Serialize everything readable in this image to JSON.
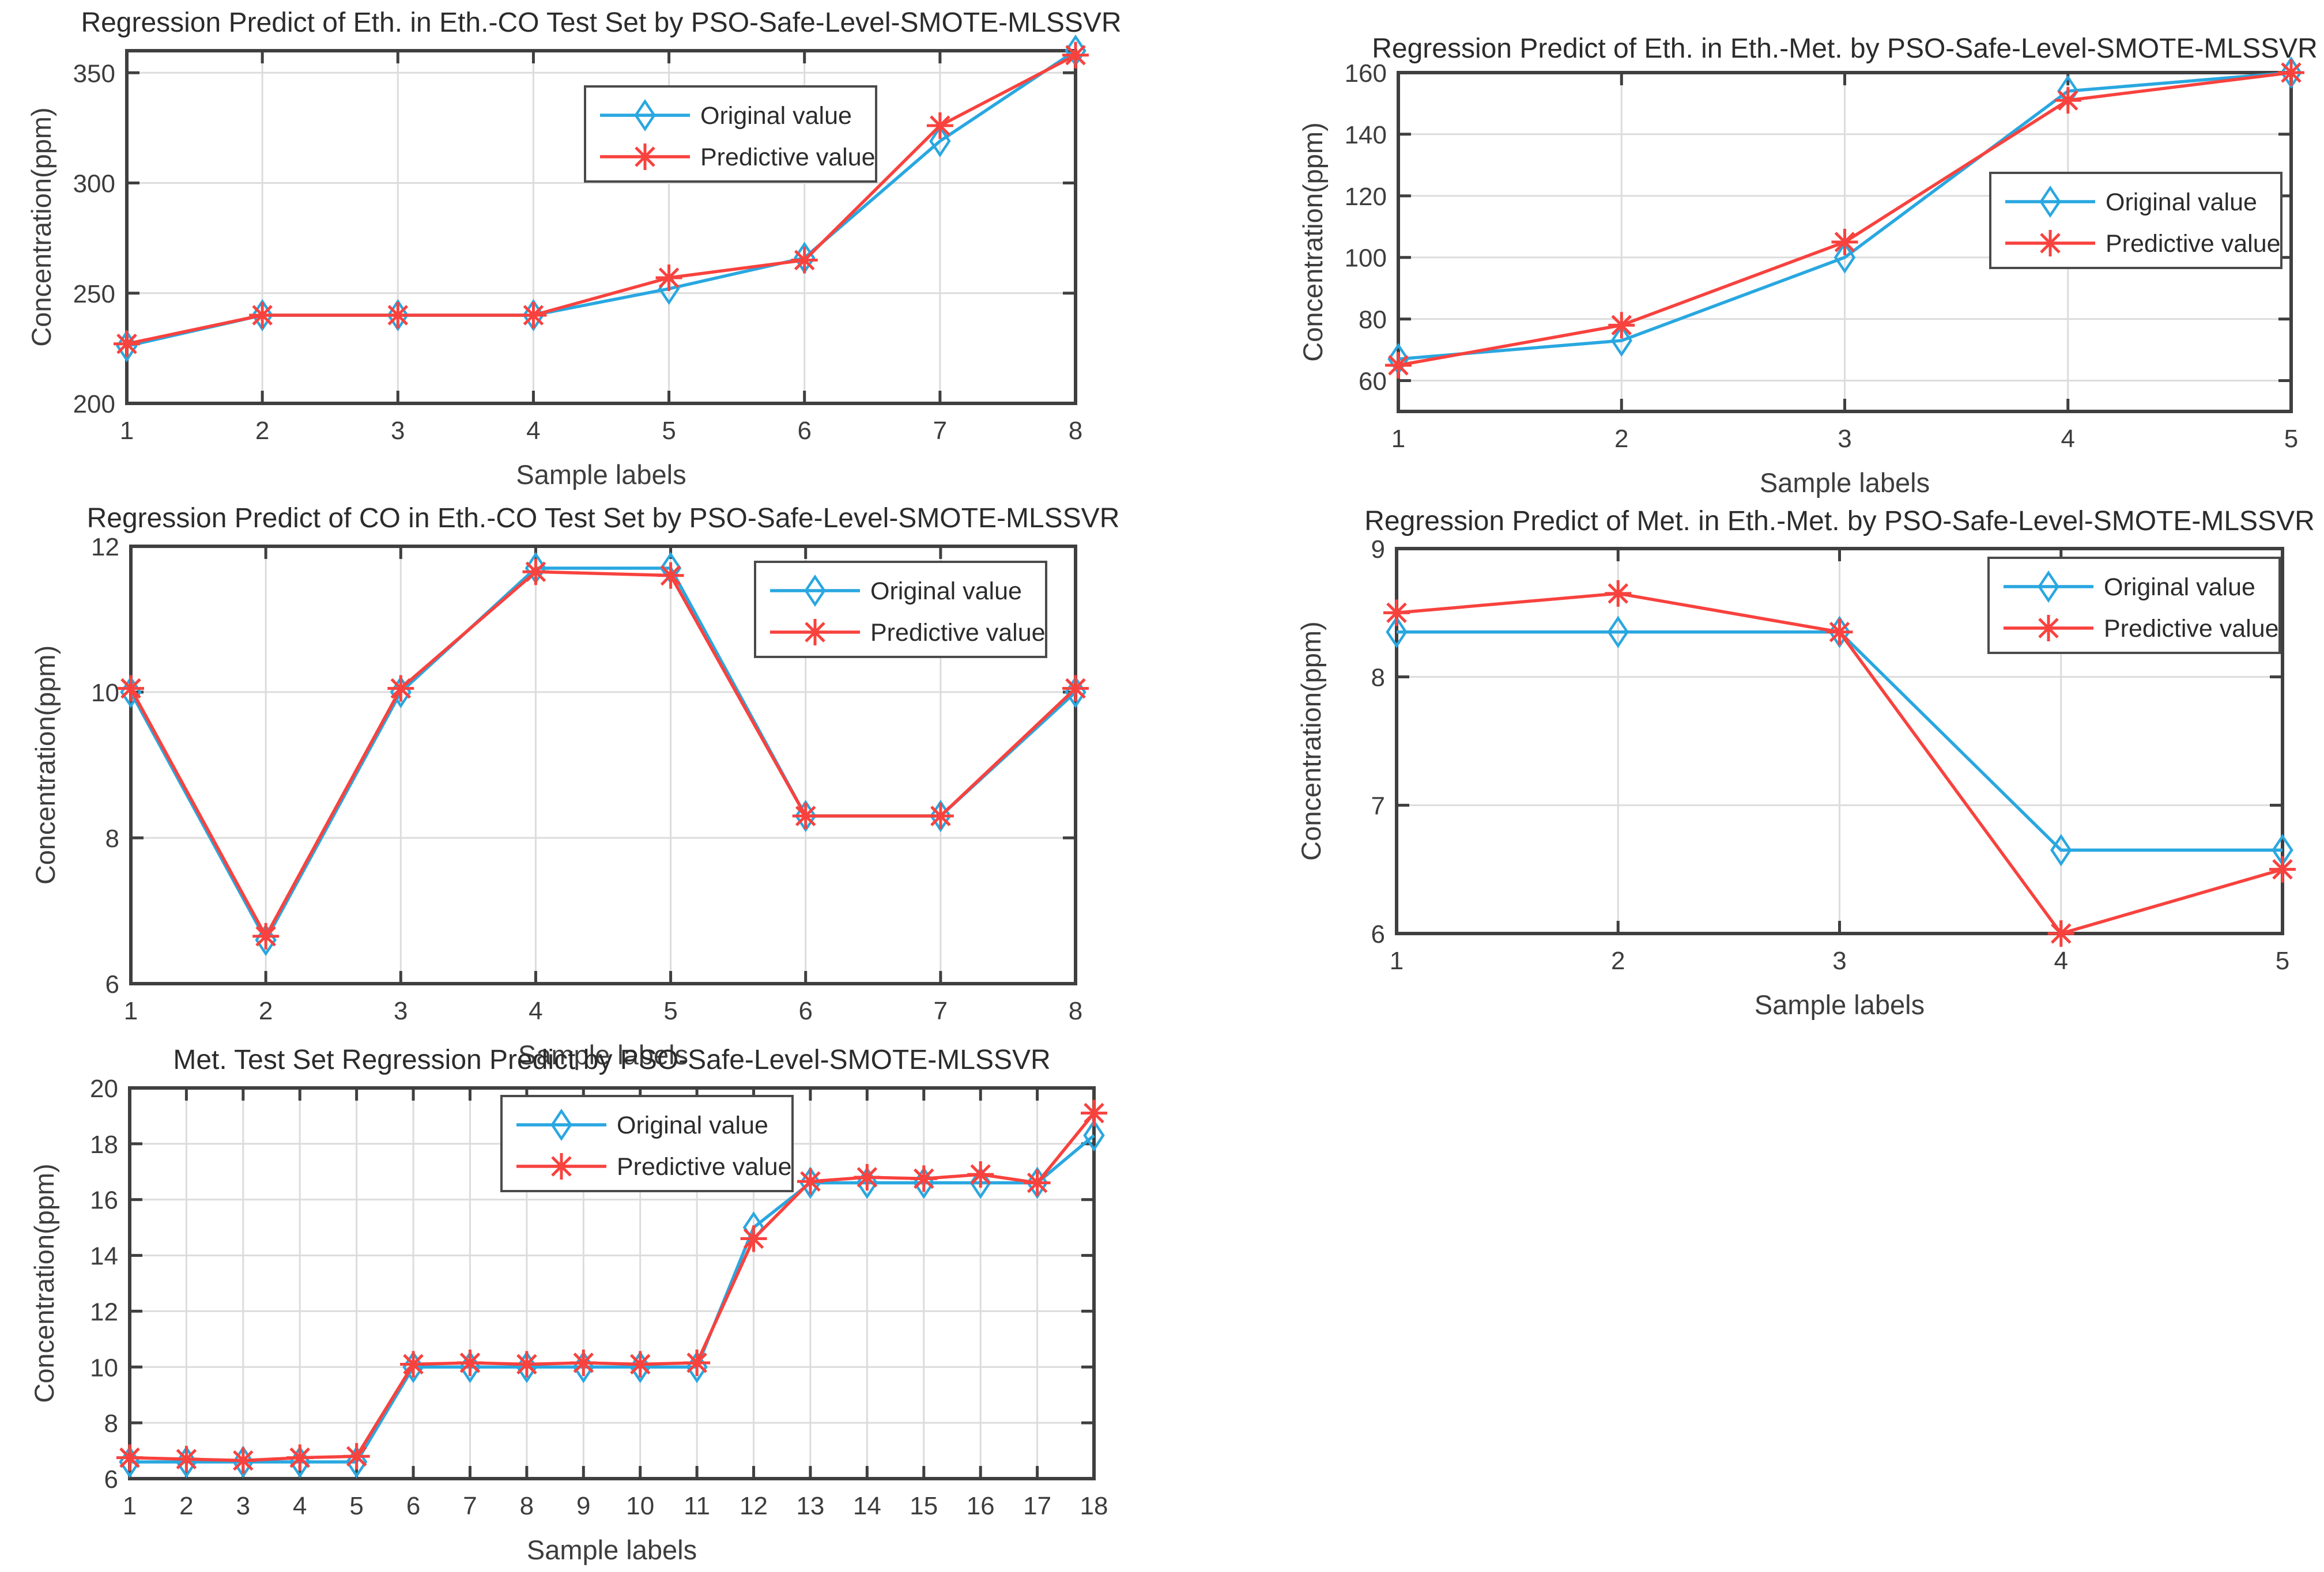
{
  "figure": {
    "background": "#ffffff",
    "colors": {
      "original": "#29a7e0",
      "predictive": "#f8423e",
      "grid": "#dcdcdc",
      "axis": "#3f3f3f",
      "title_text": "#2b2b2b",
      "tick_text": "#3d3d3d",
      "legend_border": "#4a4a4a",
      "legend_bg": "#ffffff"
    }
  },
  "chart_data": [
    {
      "id": "eth-in-eth-co",
      "type": "line",
      "title": "Regression Predict of Eth. in Eth.-CO Test Set  by PSO-Safe-Level-SMOTE-MLSSVR",
      "xlabel": "Sample labels",
      "ylabel": "Concentration(ppm)",
      "xlim": [
        1,
        8
      ],
      "ylim": [
        200,
        360
      ],
      "xticks": [
        1,
        2,
        3,
        4,
        5,
        6,
        7,
        8
      ],
      "yticks": [
        200,
        250,
        300,
        350
      ],
      "grid": true,
      "legend_position": "top-center",
      "series": [
        {
          "name": "Original value",
          "marker": "diamond",
          "color_key": "original",
          "values": [
            226,
            240,
            240,
            240,
            252,
            266,
            319,
            360
          ]
        },
        {
          "name": "Predictive value",
          "marker": "asterisk",
          "color_key": "predictive",
          "values": [
            227,
            240,
            240,
            240,
            257,
            265,
            326,
            358
          ]
        }
      ]
    },
    {
      "id": "eth-in-eth-met",
      "type": "line",
      "title": "Regression Predict of Eth. in Eth.-Met. by PSO-Safe-Level-SMOTE-MLSSVR",
      "xlabel": "Sample labels",
      "ylabel": "Concentration(ppm)",
      "xlim": [
        1,
        5
      ],
      "ylim": [
        50,
        160
      ],
      "xticks": [
        1,
        2,
        3,
        4,
        5
      ],
      "yticks": [
        60,
        80,
        100,
        120,
        140,
        160
      ],
      "grid": true,
      "legend_position": "middle-right",
      "series": [
        {
          "name": "Original value",
          "marker": "diamond",
          "color_key": "original",
          "values": [
            67,
            73,
            100,
            154,
            160
          ]
        },
        {
          "name": "Predictive value",
          "marker": "asterisk",
          "color_key": "predictive",
          "values": [
            65,
            78,
            105,
            151,
            160
          ]
        }
      ]
    },
    {
      "id": "co-in-eth-co",
      "type": "line",
      "title": "Regression Predict of CO in Eth.-CO Test Set by PSO-Safe-Level-SMOTE-MLSSVR",
      "xlabel": "Sample labels",
      "ylabel": "Concentration(ppm)",
      "xlim": [
        1,
        8
      ],
      "ylim": [
        6,
        12
      ],
      "xticks": [
        1,
        2,
        3,
        4,
        5,
        6,
        7,
        8
      ],
      "yticks": [
        6,
        8,
        10,
        12
      ],
      "grid": true,
      "legend_position": "top-right",
      "series": [
        {
          "name": "Original value",
          "marker": "diamond",
          "color_key": "original",
          "values": [
            10,
            6.6,
            10,
            11.7,
            11.7,
            8.3,
            8.3,
            10
          ]
        },
        {
          "name": "Predictive value",
          "marker": "asterisk",
          "color_key": "predictive",
          "values": [
            10.05,
            6.65,
            10.05,
            11.65,
            11.6,
            8.3,
            8.3,
            10.05
          ]
        }
      ]
    },
    {
      "id": "met-in-eth-met",
      "type": "line",
      "title": "Regression Predict of Met. in Eth.-Met. by PSO-Safe-Level-SMOTE-MLSSVR",
      "xlabel": "Sample labels",
      "ylabel": "Concentration(ppm)",
      "xlim": [
        1,
        5
      ],
      "ylim": [
        6,
        9
      ],
      "xticks": [
        1,
        2,
        3,
        4,
        5
      ],
      "yticks": [
        6,
        7,
        8,
        9
      ],
      "grid": true,
      "legend_position": "top-right",
      "series": [
        {
          "name": "Original value",
          "marker": "diamond",
          "color_key": "original",
          "values": [
            8.35,
            8.35,
            8.35,
            6.65,
            6.65
          ]
        },
        {
          "name": "Predictive value",
          "marker": "asterisk",
          "color_key": "predictive",
          "values": [
            8.5,
            8.65,
            8.35,
            6.0,
            6.5
          ]
        }
      ]
    },
    {
      "id": "met-test-set",
      "type": "line",
      "title": "Met. Test Set Regression Predict by PSO-Safe-Level-SMOTE-MLSSVR",
      "xlabel": "Sample labels",
      "ylabel": "Concentration(ppm)",
      "xlim": [
        1,
        18
      ],
      "ylim": [
        6,
        20
      ],
      "xticks": [
        1,
        2,
        3,
        4,
        5,
        6,
        7,
        8,
        9,
        10,
        11,
        12,
        13,
        14,
        15,
        16,
        17,
        18
      ],
      "yticks": [
        6,
        8,
        10,
        12,
        14,
        16,
        18,
        20
      ],
      "grid": true,
      "legend_position": "top-left-center",
      "series": [
        {
          "name": "Original value",
          "marker": "diamond",
          "color_key": "original",
          "values": [
            6.6,
            6.6,
            6.6,
            6.6,
            6.6,
            10,
            10,
            10,
            10,
            10,
            10,
            15,
            16.6,
            16.6,
            16.6,
            16.6,
            16.6,
            18.3
          ]
        },
        {
          "name": "Predictive value",
          "marker": "asterisk",
          "color_key": "predictive",
          "values": [
            6.75,
            6.7,
            6.65,
            6.75,
            6.8,
            10.1,
            10.15,
            10.1,
            10.15,
            10.1,
            10.15,
            14.6,
            16.65,
            16.8,
            16.75,
            16.9,
            16.6,
            19.1
          ]
        }
      ]
    }
  ]
}
